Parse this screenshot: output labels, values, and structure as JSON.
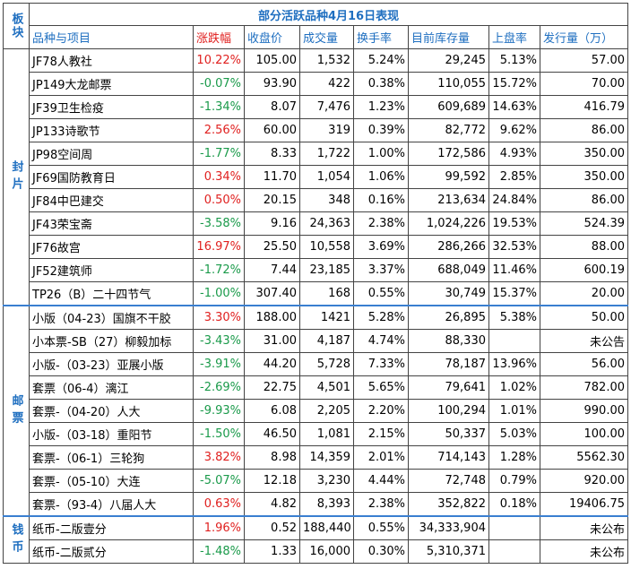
{
  "title": "部分活跃品种4月16日表现",
  "group_header": "板块",
  "headers": [
    "品种与项目",
    "涨跌幅",
    "收盘价",
    "成交量",
    "换手率",
    "目前库存量",
    "上盘率",
    "发行量（万）"
  ],
  "groups": [
    {
      "label": "封片",
      "rows": [
        [
          "JF78人教社",
          "10.22%",
          "105.00",
          "1,532",
          "5.24%",
          "29,245",
          "5.13%",
          "57.00"
        ],
        [
          "JP149大龙邮票",
          "-0.07%",
          "93.90",
          "422",
          "0.38%",
          "110,055",
          "15.72%",
          "70.00"
        ],
        [
          "JF39卫生检疫",
          "-1.34%",
          "8.07",
          "7,476",
          "1.23%",
          "609,689",
          "14.63%",
          "416.79"
        ],
        [
          "JP133诗歌节",
          "2.56%",
          "60.00",
          "319",
          "0.39%",
          "82,772",
          "9.62%",
          "86.00"
        ],
        [
          "JP98空间周",
          "-1.77%",
          "8.33",
          "1,722",
          "1.00%",
          "172,586",
          "4.93%",
          "350.00"
        ],
        [
          "JF69国防教育日",
          "0.34%",
          "11.70",
          "1,054",
          "1.06%",
          "99,592",
          "2.85%",
          "350.00"
        ],
        [
          "JF84中巴建交",
          "0.50%",
          "20.15",
          "348",
          "0.16%",
          "213,634",
          "24.84%",
          "86.00"
        ],
        [
          "JF43荣宝斋",
          "-3.58%",
          "9.16",
          "24,363",
          "2.38%",
          "1,024,226",
          "19.53%",
          "524.39"
        ],
        [
          "JF76故宫",
          "16.97%",
          "25.50",
          "10,558",
          "3.69%",
          "286,266",
          "32.53%",
          "88.00"
        ],
        [
          "JF52建筑师",
          "-1.72%",
          "7.44",
          "23,185",
          "3.37%",
          "688,049",
          "11.46%",
          "600.19"
        ],
        [
          "TP26（B）二十四节气",
          "-1.00%",
          "307.40",
          "168",
          "0.55%",
          "30,749",
          "15.37%",
          "20.00"
        ]
      ]
    },
    {
      "label": "邮票",
      "rows": [
        [
          "小版（04-23）国旗不干胶",
          "3.30%",
          "188.00",
          "1421",
          "5.28%",
          "26,895",
          "5.38%",
          "50.00"
        ],
        [
          "小本票-SB（27）柳毅加标",
          "-3.43%",
          "31.00",
          "4,187",
          "4.74%",
          "88,330",
          null,
          "未公告"
        ],
        [
          "小版-（03-23）亚展小版",
          "-3.91%",
          "44.20",
          "5,728",
          "7.33%",
          "78,187",
          "13.96%",
          "56.00"
        ],
        [
          "套票（06-4）漓江",
          "-2.69%",
          "22.75",
          "4,501",
          "5.65%",
          "79,641",
          "1.02%",
          "782.00"
        ],
        [
          "套票-（04-20）人大",
          "-9.93%",
          "6.08",
          "2,205",
          "2.20%",
          "100,294",
          "1.01%",
          "990.00"
        ],
        [
          "小版-（03-18）重阳节",
          "-1.50%",
          "46.50",
          "1,081",
          "2.15%",
          "50,337",
          "5.03%",
          "100.00"
        ],
        [
          "套票-（06-1）三轮狗",
          "3.82%",
          "8.98",
          "14,359",
          "2.01%",
          "714,143",
          "1.28%",
          "5562.30"
        ],
        [
          "套票-（05-10）大连",
          "-5.07%",
          "12.18",
          "3,230",
          "4.44%",
          "72,748",
          "0.79%",
          "920.00"
        ],
        [
          "套票-（93-4）八届人大",
          "0.63%",
          "4.82",
          "8,393",
          "2.38%",
          "352,822",
          "0.18%",
          "19406.75"
        ]
      ]
    },
    {
      "label": "钱币",
      "rows": [
        [
          "纸币-二版壹分",
          "1.96%",
          "0.52",
          "188,440",
          "0.55%",
          "34,333,904",
          null,
          "未公布"
        ],
        [
          "纸币-二版贰分",
          "-1.48%",
          "1.33",
          "16,000",
          "0.30%",
          "5,310,371",
          null,
          "未公布"
        ]
      ]
    }
  ]
}
